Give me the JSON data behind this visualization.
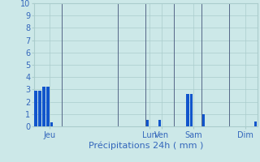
{
  "title": "",
  "xlabel": "Précipitations 24h ( mm )",
  "ylabel": "",
  "ylim": [
    0,
    10
  ],
  "background_color": "#cce8e8",
  "bar_color": "#1155cc",
  "grid_color": "#aacccc",
  "tick_label_color": "#3366bb",
  "xlabel_color": "#3366bb",
  "ytick_label_color": "#3366bb",
  "n_bars": 56,
  "bar_width": 0.7,
  "x_values": [
    0,
    1,
    2,
    3,
    4,
    5,
    6,
    7,
    8,
    9,
    10,
    11,
    12,
    13,
    14,
    15,
    16,
    17,
    18,
    19,
    20,
    21,
    22,
    23,
    24,
    25,
    26,
    27,
    28,
    29,
    30,
    31,
    32,
    33,
    34,
    35,
    36,
    37,
    38,
    39,
    40,
    41,
    42,
    43,
    44,
    45,
    46,
    47,
    48,
    49,
    50,
    51,
    52,
    53,
    54,
    55
  ],
  "y_values": [
    2.9,
    2.9,
    3.2,
    3.2,
    0.3,
    0,
    0,
    0,
    0,
    0,
    0,
    0,
    0,
    0,
    0,
    0,
    0,
    0,
    0,
    0,
    0,
    0,
    0,
    0,
    0,
    0,
    0,
    0,
    0.5,
    0,
    0,
    0.5,
    0,
    0,
    0,
    0,
    0,
    0,
    2.6,
    2.6,
    0,
    0,
    1.0,
    0,
    0,
    0,
    0,
    0,
    0,
    0,
    0,
    0,
    0,
    0,
    0,
    0.4
  ],
  "sep_positions": [
    7,
    21,
    28,
    35,
    42,
    49
  ],
  "xtick_positions": [
    3.5,
    28.5,
    31.5,
    39.5,
    52.5
  ],
  "xtick_labels": [
    "Jeu",
    "Lun",
    "Ven",
    "Sam",
    "Dim"
  ],
  "ytick_positions": [
    0,
    1,
    2,
    3,
    4,
    5,
    6,
    7,
    8,
    9,
    10
  ],
  "ytick_labels": [
    "0",
    "1",
    "2",
    "3",
    "4",
    "5",
    "6",
    "7",
    "8",
    "9",
    "10"
  ]
}
